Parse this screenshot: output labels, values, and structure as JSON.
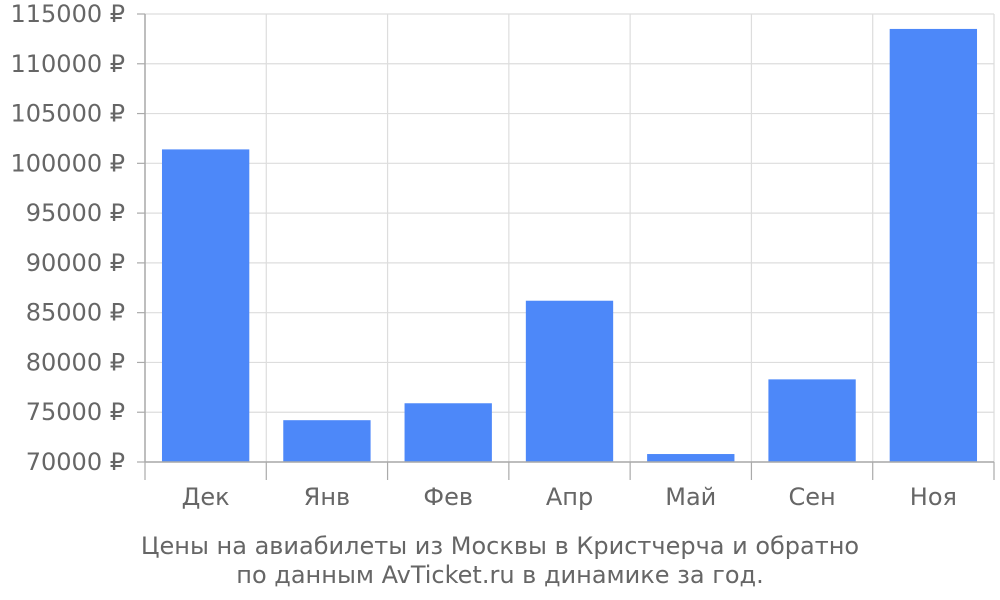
{
  "chart_data": {
    "type": "bar",
    "categories": [
      "Дек",
      "Янв",
      "Фев",
      "Апр",
      "Май",
      "Сен",
      "Ноя"
    ],
    "values": [
      101400,
      74200,
      75900,
      86200,
      70800,
      78300,
      113500
    ],
    "ylim": [
      70000,
      115000
    ],
    "yticks": [
      70000,
      75000,
      80000,
      85000,
      90000,
      95000,
      100000,
      105000,
      110000,
      115000
    ],
    "ytick_labels": [
      "70000 ₽",
      "75000 ₽",
      "80000 ₽",
      "85000 ₽",
      "90000 ₽",
      "95000 ₽",
      "100000 ₽",
      "105000 ₽",
      "110000 ₽",
      "115000 ₽"
    ],
    "grid": true,
    "bar_color": "#4d88f9",
    "grid_color": "#dddddd",
    "axis_color": "#aaaaaa",
    "text_color": "#666666"
  },
  "caption": {
    "line1": "Цены на авиабилеты из Москвы в Кристчерча и обратно",
    "line2": "по данным AvTicket.ru в динамике за год."
  }
}
